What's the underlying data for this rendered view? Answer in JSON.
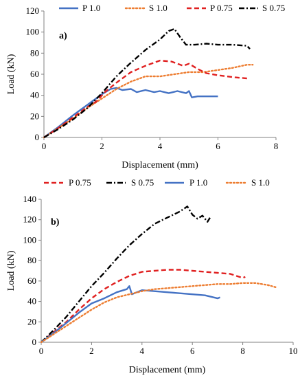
{
  "chart_data": [
    {
      "type": "line",
      "panel_label": "a)",
      "xlabel": "Displacement (mm)",
      "ylabel": "Load (kN)",
      "xlim": [
        0,
        8
      ],
      "ylim": [
        0,
        120
      ],
      "xticks": [
        "0",
        "2",
        "4",
        "6",
        "8"
      ],
      "yticks": [
        "0",
        "20",
        "40",
        "60",
        "80",
        "100",
        "120"
      ],
      "legend_position": "top",
      "series": [
        {
          "name": "P 1.0",
          "color": "#4472C4",
          "dash": "solid",
          "x": [
            0,
            0.5,
            1.0,
            1.5,
            2.0,
            2.3,
            2.5,
            2.7,
            3.0,
            3.2,
            3.5,
            3.8,
            4.0,
            4.3,
            4.6,
            4.9,
            5.0,
            5.1,
            5.3,
            5.6,
            6.0
          ],
          "y": [
            0,
            10,
            21,
            31,
            41,
            46,
            47,
            45,
            46,
            43,
            45,
            43,
            44,
            42,
            44,
            42,
            44,
            38,
            39,
            39,
            39
          ]
        },
        {
          "name": "S 1.0",
          "color": "#ED7D31",
          "dash": "dot",
          "x": [
            0,
            0.5,
            1.0,
            1.5,
            2.0,
            2.5,
            3.0,
            3.5,
            4.0,
            4.5,
            5.0,
            5.5,
            6.0,
            6.5,
            7.0,
            7.2
          ],
          "y": [
            0,
            9,
            18,
            28,
            37,
            46,
            53,
            58,
            58,
            60,
            62,
            62,
            64,
            66,
            69,
            69
          ]
        },
        {
          "name": "P 0.75",
          "color": "#E02020",
          "dash": "dash",
          "x": [
            0,
            0.5,
            1.0,
            1.5,
            1.8,
            2.1,
            2.5,
            3.0,
            3.5,
            4.0,
            4.4,
            4.8,
            5.0,
            5.3,
            5.6,
            6.0,
            6.3,
            6.6,
            7.0
          ],
          "y": [
            0,
            9,
            19,
            29,
            34,
            43,
            52,
            62,
            68,
            73,
            72,
            68,
            70,
            65,
            61,
            59,
            58,
            57,
            56
          ]
        },
        {
          "name": "S 0.75",
          "color": "#000000",
          "dash": "dashdot",
          "x": [
            0,
            0.5,
            1.0,
            1.5,
            2.0,
            2.5,
            3.0,
            3.5,
            4.0,
            4.3,
            4.5,
            4.7,
            4.9,
            5.2,
            5.6,
            6.0,
            6.5,
            7.0,
            7.1
          ],
          "y": [
            0,
            8,
            17,
            28,
            42,
            58,
            71,
            83,
            93,
            101,
            103,
            95,
            88,
            88,
            89,
            88,
            88,
            87,
            84
          ]
        }
      ]
    },
    {
      "type": "line",
      "panel_label": "b)",
      "xlabel": "Displacement (mm)",
      "ylabel": "Load (kN)",
      "xlim": [
        0,
        10
      ],
      "ylim": [
        0,
        140
      ],
      "xticks": [
        "0",
        "2",
        "4",
        "6",
        "8",
        "10"
      ],
      "yticks": [
        "0",
        "20",
        "40",
        "60",
        "80",
        "100",
        "120",
        "140"
      ],
      "legend_position": "top",
      "series": [
        {
          "name": "P 0.75",
          "color": "#E02020",
          "dash": "dash",
          "x": [
            0,
            0.5,
            1.0,
            1.5,
            2.0,
            2.5,
            3.0,
            3.5,
            4.0,
            4.5,
            5.0,
            5.5,
            6.0,
            6.5,
            7.0,
            7.5,
            8.0,
            8.1
          ],
          "y": [
            0,
            10,
            20,
            32,
            43,
            52,
            59,
            65,
            69,
            70,
            71,
            71,
            70,
            69,
            68,
            67,
            63,
            64
          ]
        },
        {
          "name": "S 0.75",
          "color": "#000000",
          "dash": "dashdot",
          "x": [
            0,
            0.5,
            1.0,
            1.5,
            2.0,
            2.5,
            3.0,
            3.5,
            4.0,
            4.5,
            5.0,
            5.5,
            5.8,
            6.0,
            6.2,
            6.4,
            6.6,
            6.7
          ],
          "y": [
            0,
            12,
            25,
            40,
            55,
            68,
            82,
            95,
            106,
            116,
            122,
            128,
            133,
            125,
            121,
            124,
            118,
            122
          ]
        },
        {
          "name": "P 1.0",
          "color": "#4472C4",
          "dash": "solid",
          "x": [
            0,
            0.5,
            1.0,
            1.5,
            2.0,
            2.5,
            3.0,
            3.4,
            3.5,
            3.6,
            4.0,
            4.5,
            5.0,
            5.5,
            6.0,
            6.5,
            7.0,
            7.1
          ],
          "y": [
            0,
            9,
            19,
            29,
            38,
            43,
            49,
            52,
            55,
            47,
            51,
            50,
            49,
            48,
            47,
            46,
            43,
            44
          ]
        },
        {
          "name": "S 1.0",
          "color": "#ED7D31",
          "dash": "dot",
          "x": [
            0,
            0.5,
            1.0,
            1.5,
            2.0,
            2.5,
            3.0,
            3.5,
            4.0,
            4.5,
            5.0,
            5.5,
            6.0,
            6.5,
            7.0,
            7.5,
            8.0,
            8.5,
            9.0,
            9.3
          ],
          "y": [
            0,
            8,
            16,
            24,
            32,
            39,
            44,
            47,
            50,
            52,
            53,
            54,
            55,
            56,
            57,
            57,
            58,
            58,
            56,
            54
          ]
        }
      ]
    }
  ]
}
